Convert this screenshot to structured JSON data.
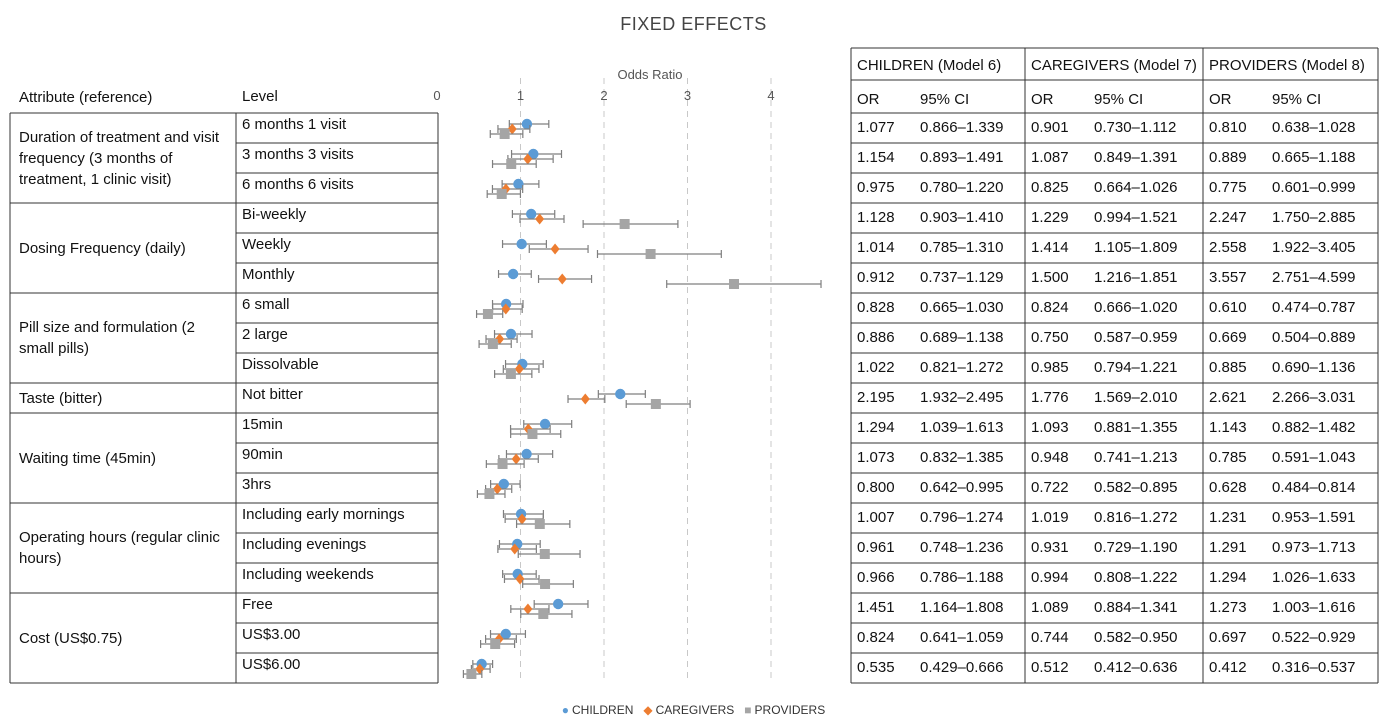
{
  "title": "FIXED EFFECTS",
  "headers": {
    "attribute": "Attribute (reference)",
    "level": "Level",
    "or": "OR",
    "ci": "95% CI"
  },
  "model_headers": [
    "CHILDREN (Model 6)",
    "CAREGIVERS (Model 7)",
    "PROVIDERS (Model 8)"
  ],
  "attributes": [
    {
      "label": "Duration of treatment and visit frequency (3 months of treatment, 1 clinic visit)",
      "rows": 3
    },
    {
      "label": "Dosing Frequency (daily)",
      "rows": 3
    },
    {
      "label": "Pill size and formulation (2 small pills)",
      "rows": 3
    },
    {
      "label": "Taste (bitter)",
      "rows": 1
    },
    {
      "label": "Waiting time (45min)",
      "rows": 3
    },
    {
      "label": "Operating hours (regular clinic hours)",
      "rows": 3
    },
    {
      "label": "Cost (US$0.75)",
      "rows": 3
    }
  ],
  "rows": [
    {
      "level": "6 months 1 visit",
      "values": [
        [
          "1.077",
          "0.866–1.339"
        ],
        [
          "0.901",
          "0.730–1.112"
        ],
        [
          "0.810",
          "0.638–1.028"
        ]
      ]
    },
    {
      "level": "3 months 3 visits",
      "values": [
        [
          "1.154",
          "0.893–1.491"
        ],
        [
          "1.087",
          "0.849–1.391"
        ],
        [
          "0.889",
          "0.665–1.188"
        ]
      ]
    },
    {
      "level": "6 months 6 visits",
      "values": [
        [
          "0.975",
          "0.780–1.220"
        ],
        [
          "0.825",
          "0.664–1.026"
        ],
        [
          "0.775",
          "0.601–0.999"
        ]
      ]
    },
    {
      "level": "Bi-weekly",
      "values": [
        [
          "1.128",
          "0.903–1.410"
        ],
        [
          "1.229",
          "0.994–1.521"
        ],
        [
          "2.247",
          "1.750–2.885"
        ]
      ]
    },
    {
      "level": "Weekly",
      "values": [
        [
          "1.014",
          "0.785–1.310"
        ],
        [
          "1.414",
          "1.105–1.809"
        ],
        [
          "2.558",
          "1.922–3.405"
        ]
      ]
    },
    {
      "level": "Monthly",
      "values": [
        [
          "0.912",
          "0.737–1.129"
        ],
        [
          "1.500",
          "1.216–1.851"
        ],
        [
          "3.557",
          "2.751–4.599"
        ]
      ]
    },
    {
      "level": "6 small",
      "values": [
        [
          "0.828",
          "0.665–1.030"
        ],
        [
          "0.824",
          "0.666–1.020"
        ],
        [
          "0.610",
          "0.474–0.787"
        ]
      ]
    },
    {
      "level": "2 large",
      "values": [
        [
          "0.886",
          "0.689–1.138"
        ],
        [
          "0.750",
          "0.587–0.959"
        ],
        [
          "0.669",
          "0.504–0.889"
        ]
      ]
    },
    {
      "level": "Dissolvable",
      "values": [
        [
          "1.022",
          "0.821–1.272"
        ],
        [
          "0.985",
          "0.794–1.221"
        ],
        [
          "0.885",
          "0.690–1.136"
        ]
      ]
    },
    {
      "level": "Not bitter",
      "values": [
        [
          "2.195",
          "1.932–2.495"
        ],
        [
          "1.776",
          "1.569–2.010"
        ],
        [
          "2.621",
          "2.266–3.031"
        ]
      ]
    },
    {
      "level": "15min",
      "values": [
        [
          "1.294",
          "1.039–1.613"
        ],
        [
          "1.093",
          "0.881–1.355"
        ],
        [
          "1.143",
          "0.882–1.482"
        ]
      ]
    },
    {
      "level": "90min",
      "values": [
        [
          "1.073",
          "0.832–1.385"
        ],
        [
          "0.948",
          "0.741–1.213"
        ],
        [
          "0.785",
          "0.591–1.043"
        ]
      ]
    },
    {
      "level": "3hrs",
      "values": [
        [
          "0.800",
          "0.642–0.995"
        ],
        [
          "0.722",
          "0.582–0.895"
        ],
        [
          "0.628",
          "0.484–0.814"
        ]
      ]
    },
    {
      "level": "Including early mornings",
      "values": [
        [
          "1.007",
          "0.796–1.274"
        ],
        [
          "1.019",
          "0.816–1.272"
        ],
        [
          "1.231",
          "0.953–1.591"
        ]
      ]
    },
    {
      "level": "Including evenings",
      "values": [
        [
          "0.961",
          "0.748–1.236"
        ],
        [
          "0.931",
          "0.729–1.190"
        ],
        [
          "1.291",
          "0.973–1.713"
        ]
      ]
    },
    {
      "level": "Including weekends",
      "values": [
        [
          "0.966",
          "0.786–1.188"
        ],
        [
          "0.994",
          "0.808–1.222"
        ],
        [
          "1.294",
          "1.026–1.633"
        ]
      ]
    },
    {
      "level": "Free",
      "values": [
        [
          "1.451",
          "1.164–1.808"
        ],
        [
          "1.089",
          "0.884–1.341"
        ],
        [
          "1.273",
          "1.003–1.616"
        ]
      ]
    },
    {
      "level": "US$3.00",
      "values": [
        [
          "0.824",
          "0.641–1.059"
        ],
        [
          "0.744",
          "0.582–0.950"
        ],
        [
          "0.697",
          "0.522–0.929"
        ]
      ]
    },
    {
      "level": "US$6.00",
      "values": [
        [
          "0.535",
          "0.429–0.666"
        ],
        [
          "0.512",
          "0.412–0.636"
        ],
        [
          "0.412",
          "0.316–0.537"
        ]
      ]
    }
  ],
  "chart_data": {
    "type": "scatter",
    "title": "FIXED EFFECTS",
    "xlabel": "Odds Ratio",
    "xlim": [
      0,
      4
    ],
    "xticks": [
      "0",
      "1",
      "2",
      "3",
      "4"
    ],
    "grid": "vertical dashed",
    "legend_position": "bottom",
    "categories": [
      "6 months 1 visit",
      "3 months 3 visits",
      "6 months 6 visits",
      "Bi-weekly",
      "Weekly",
      "Monthly",
      "6 small",
      "2 large",
      "Dissolvable",
      "Not bitter",
      "15min",
      "90min",
      "3hrs",
      "Including early mornings",
      "Including evenings",
      "Including weekends",
      "Free",
      "US$3.00",
      "US$6.00"
    ],
    "series": [
      {
        "name": "CHILDREN",
        "color": "#5B9BD5",
        "marker": "circle",
        "or": [
          1.077,
          1.154,
          0.975,
          1.128,
          1.014,
          0.912,
          0.828,
          0.886,
          1.022,
          2.195,
          1.294,
          1.073,
          0.8,
          1.007,
          0.961,
          0.966,
          1.451,
          0.824,
          0.535
        ],
        "lo": [
          0.866,
          0.893,
          0.78,
          0.903,
          0.785,
          0.737,
          0.665,
          0.689,
          0.821,
          1.932,
          1.039,
          0.832,
          0.642,
          0.796,
          0.748,
          0.786,
          1.164,
          0.641,
          0.429
        ],
        "hi": [
          1.339,
          1.491,
          1.22,
          1.41,
          1.31,
          1.129,
          1.03,
          1.138,
          1.272,
          2.495,
          1.613,
          1.385,
          0.995,
          1.274,
          1.236,
          1.188,
          1.808,
          1.059,
          0.666
        ]
      },
      {
        "name": "CAREGIVERS",
        "color": "#ED7D31",
        "marker": "diamond",
        "or": [
          0.901,
          1.087,
          0.825,
          1.229,
          1.414,
          1.5,
          0.824,
          0.75,
          0.985,
          1.776,
          1.093,
          0.948,
          0.722,
          1.019,
          0.931,
          0.994,
          1.089,
          0.744,
          0.512
        ],
        "lo": [
          0.73,
          0.849,
          0.664,
          0.994,
          1.105,
          1.216,
          0.666,
          0.587,
          0.794,
          1.569,
          0.881,
          0.741,
          0.582,
          0.816,
          0.729,
          0.808,
          0.884,
          0.582,
          0.412
        ],
        "hi": [
          1.112,
          1.391,
          1.026,
          1.521,
          1.809,
          1.851,
          1.02,
          0.959,
          1.221,
          2.01,
          1.355,
          1.213,
          0.895,
          1.272,
          1.19,
          1.222,
          1.341,
          0.95,
          0.636
        ]
      },
      {
        "name": "PROVIDERS",
        "color": "#A5A5A5",
        "marker": "square",
        "or": [
          0.81,
          0.889,
          0.775,
          2.247,
          2.558,
          3.557,
          0.61,
          0.669,
          0.885,
          2.621,
          1.143,
          0.785,
          0.628,
          1.231,
          1.291,
          1.294,
          1.273,
          0.697,
          0.412
        ],
        "lo": [
          0.638,
          0.665,
          0.601,
          1.75,
          1.922,
          2.751,
          0.474,
          0.504,
          0.69,
          2.266,
          0.882,
          0.591,
          0.484,
          0.953,
          0.973,
          1.026,
          1.003,
          0.522,
          0.316
        ],
        "hi": [
          1.028,
          1.188,
          0.999,
          2.885,
          3.405,
          4.599,
          0.787,
          0.889,
          1.136,
          3.031,
          1.482,
          1.043,
          0.814,
          1.591,
          1.713,
          1.633,
          1.616,
          0.929,
          0.537
        ]
      }
    ]
  }
}
